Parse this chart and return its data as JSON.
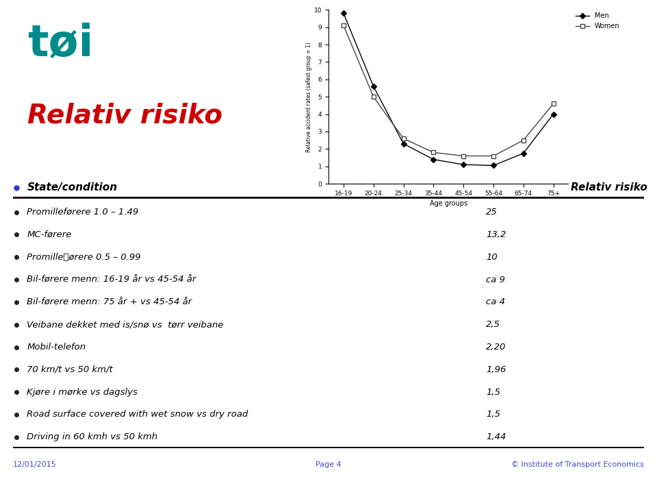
{
  "age_groups": [
    "16-19",
    "20-24",
    "25-34",
    "35-44",
    "45-54",
    "55-64",
    "65-74",
    "75+"
  ],
  "men_values": [
    9.8,
    5.6,
    2.3,
    1.4,
    1.1,
    1.05,
    1.75,
    4.0
  ],
  "women_values": [
    9.1,
    5.0,
    2.6,
    1.8,
    1.6,
    1.6,
    2.5,
    4.6
  ],
  "ylabel": "Relative accident rates (safest group = 1)",
  "xlabel": "Age groups",
  "ylim": [
    0,
    10
  ],
  "yticks": [
    0,
    1,
    2,
    3,
    4,
    5,
    6,
    7,
    8,
    9,
    10
  ],
  "legend_men": "Men",
  "legend_women": "Women",
  "men_color": "#000000",
  "women_color": "#444444",
  "header_left": "State/condition",
  "header_right": "Relativ risiko",
  "table_rows": [
    [
      "Promilleførere 1.0 – 1.49",
      "25"
    ],
    [
      "MC-førere",
      "13,2"
    ],
    [
      "Promilleفørere 0.5 – 0.99",
      "10"
    ],
    [
      "Bil-førere menn: 16-19 år vs 45-54 år",
      "ca 9"
    ],
    [
      "Bil-førere menn: 75 år + vs 45-54 år",
      "ca 4"
    ],
    [
      "Veibane dekket med is/snø vs  tørr veibane",
      "2,5"
    ],
    [
      "Mobil-telefon",
      "2,20"
    ],
    [
      "70 km/t vs 50 km/t",
      "1,96"
    ],
    [
      "Kjøre i mørke vs dagslys",
      "1,5"
    ],
    [
      "Road surface covered with wet snow vs dry road",
      "1,5"
    ],
    [
      "Driving in 60 kmh vs 50 kmh",
      "1,44"
    ]
  ],
  "footer_left": "12/01/2015",
  "footer_center": "Page 4",
  "footer_right": "© Institute of Transport Economics",
  "toi_color": "#008B8B",
  "red_color": "#cc0000",
  "bg_color": "#ffffff",
  "footer_color": "#4444cc",
  "bullet_dark": "#222222",
  "bullet_blue": "#3333cc"
}
